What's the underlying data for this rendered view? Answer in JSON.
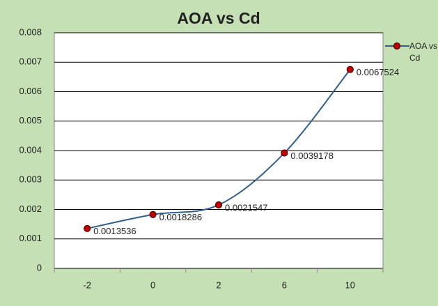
{
  "chart_data": {
    "type": "line",
    "title": "AOA vs Cd",
    "categories": [
      "-2",
      "0",
      "2",
      "6",
      "10"
    ],
    "series": [
      {
        "name": "AOA vs Cd",
        "color": "#2f5f8f",
        "marker_color": "#c00000",
        "values": [
          0.0013536,
          0.0018286,
          0.0021547,
          0.0039178,
          0.0067524
        ]
      }
    ],
    "ylim": [
      0,
      0.008
    ],
    "yticks": [
      0,
      0.001,
      0.002,
      0.003,
      0.004,
      0.005,
      0.006,
      0.007,
      0.008
    ],
    "grid": true,
    "legend": "right"
  }
}
